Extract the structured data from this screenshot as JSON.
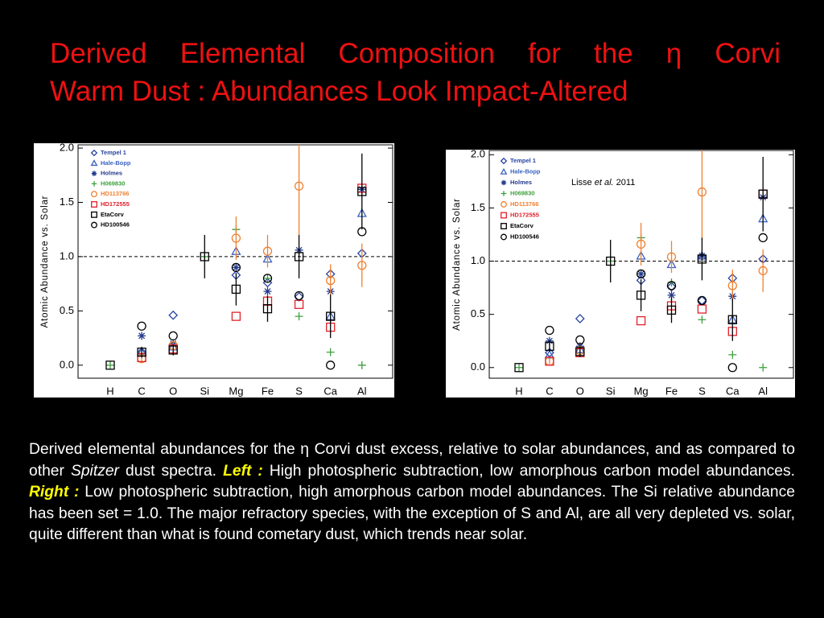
{
  "title": [
    "Derived Elemental Composition for the η Corvi",
    "Warm Dust : Abundances Look Impact-Altered"
  ],
  "caption": [
    "Derived elemental abundances for the η Corvi dust excess, relative to solar abundances, and as compared to other ",
    "Spitzer",
    " dust spectra. ",
    "Left :",
    " High photospheric subtraction, low amorphous carbon model abundances. ",
    "Right :",
    " Low photospheric subtraction, high amorphous carbon model abundances. The Si relative abundance has been set = 1.0. The major refractory species, with the exception of S and Al, are all very depleted vs. solar, quite different than what is found cometary dust, which trends near solar."
  ],
  "chart_data": [
    {
      "type": "scatter",
      "y_label": "Atomic Abundance vs. Solar",
      "categories": [
        "H",
        "C",
        "O",
        "Si",
        "Mg",
        "Fe",
        "S",
        "Ca",
        "Al"
      ],
      "ylim": [
        -0.12,
        2.03
      ],
      "yticks": [
        {
          "value": 0,
          "label": "0.0"
        },
        {
          "value": 0.5,
          "label": "0.5"
        },
        {
          "value": 1,
          "label": "1.0"
        },
        {
          "value": 1.5,
          "label": "1.5"
        },
        {
          "value": 2,
          "label": "2.0"
        }
      ],
      "hline": 1,
      "legend": "upper left",
      "series": [
        {
          "name": "Tempel 1",
          "color": "#2844a0",
          "marker": "diamond",
          "values": [
            null,
            0.12,
            0.46,
            null,
            0.83,
            0.76,
            0.63,
            0.84,
            1.03
          ]
        },
        {
          "name": "Hale-Bopp",
          "color": "#3a62c0",
          "marker": "triangle",
          "values": [
            null,
            0.12,
            0.17,
            null,
            1.05,
            0.98,
            null,
            0.45,
            1.4
          ]
        },
        {
          "name": "Holmes",
          "color": "#243a8c",
          "marker": "asterisk",
          "values": [
            null,
            0.27,
            0.2,
            null,
            0.9,
            0.68,
            1.06,
            0.68,
            1.62
          ]
        },
        {
          "name": "H069830",
          "color": "#3ca03c",
          "marker": "plus",
          "values": [
            0,
            null,
            null,
            1,
            1.25,
            0.8,
            0.45,
            0.12,
            0
          ]
        },
        {
          "name": "HD113766",
          "color": "#f08030",
          "marker": "circle",
          "values": [
            null,
            0.06,
            0.18,
            null,
            1.17,
            1.05,
            1.65,
            0.78,
            0.92
          ],
          "errors": [
            null,
            0.03,
            0.03,
            null,
            0.2,
            0.15,
            0.45,
            0.15,
            0.2
          ]
        },
        {
          "name": "HD172555",
          "color": "#e0202a",
          "marker": "square",
          "values": [
            null,
            0.07,
            0.15,
            null,
            0.45,
            0.59,
            0.56,
            0.35,
            1.63
          ]
        },
        {
          "name": "EtaCorv",
          "color": "#000000",
          "marker": "square",
          "values": [
            0,
            0.12,
            0.14,
            1,
            0.7,
            0.52,
            1,
            0.45,
            1.6
          ],
          "errors": [
            0,
            0.05,
            0.05,
            0.2,
            0.15,
            0.12,
            0.2,
            0.2,
            0.35
          ]
        },
        {
          "name": "HD100546",
          "color": "#000000",
          "marker": "circle",
          "values": [
            null,
            0.36,
            0.27,
            null,
            0.9,
            0.8,
            0.64,
            0,
            1.23
          ]
        }
      ]
    },
    {
      "type": "scatter",
      "y_label": "Atomic Abundance vs. Solar",
      "categories": [
        "H",
        "C",
        "O",
        "Si",
        "Mg",
        "Fe",
        "S",
        "Ca",
        "Al"
      ],
      "ylim": [
        -0.1,
        2.04
      ],
      "yticks": [
        {
          "value": 0,
          "label": "0.0"
        },
        {
          "value": 0.5,
          "label": "0.5"
        },
        {
          "value": 1,
          "label": "1.0"
        },
        {
          "value": 1.5,
          "label": "1.5"
        },
        {
          "value": 2,
          "label": "2.0"
        }
      ],
      "hline": 1,
      "legend": "upper left",
      "annotation": [
        "Lisse ",
        "et al.",
        " 2011"
      ],
      "series": [
        {
          "name": "Tempel 1",
          "color": "#2844a0",
          "marker": "diamond",
          "values": [
            null,
            0.14,
            0.46,
            null,
            0.82,
            0.76,
            0.63,
            0.84,
            1.02
          ]
        },
        {
          "name": "Hale-Bopp",
          "color": "#3a62c0",
          "marker": "triangle",
          "values": [
            null,
            0.12,
            0.17,
            null,
            1.05,
            0.97,
            1.05,
            0.45,
            1.4
          ]
        },
        {
          "name": "Holmes",
          "color": "#243a8c",
          "marker": "asterisk",
          "values": [
            null,
            0.25,
            0.2,
            null,
            0.88,
            0.68,
            1.05,
            0.67,
            1.6
          ]
        },
        {
          "name": "H069830",
          "color": "#3ca03c",
          "marker": "plus",
          "values": [
            0,
            null,
            null,
            1,
            1.22,
            0.8,
            0.45,
            0.12,
            0
          ]
        },
        {
          "name": "HD113766",
          "color": "#f08030",
          "marker": "circle",
          "values": [
            null,
            0.06,
            0.16,
            null,
            1.16,
            1.04,
            1.65,
            0.77,
            0.91
          ],
          "errors": [
            null,
            0.03,
            0.03,
            null,
            0.2,
            0.15,
            0.45,
            0.15,
            0.2
          ]
        },
        {
          "name": "HD172555",
          "color": "#e0202a",
          "marker": "square",
          "values": [
            null,
            0.06,
            0.14,
            null,
            0.44,
            0.58,
            0.55,
            0.34,
            1.63
          ]
        },
        {
          "name": "EtaCorv",
          "color": "#000000",
          "marker": "square",
          "values": [
            0,
            0.2,
            0.15,
            1,
            0.68,
            0.54,
            1.02,
            0.45,
            1.63
          ],
          "errors": [
            0,
            0.05,
            0.05,
            0.2,
            0.15,
            0.12,
            0.2,
            0.2,
            0.35
          ]
        },
        {
          "name": "HD100546",
          "color": "#000000",
          "marker": "circle",
          "values": [
            null,
            0.35,
            0.26,
            null,
            0.88,
            0.77,
            0.63,
            0,
            1.22
          ]
        }
      ]
    }
  ]
}
